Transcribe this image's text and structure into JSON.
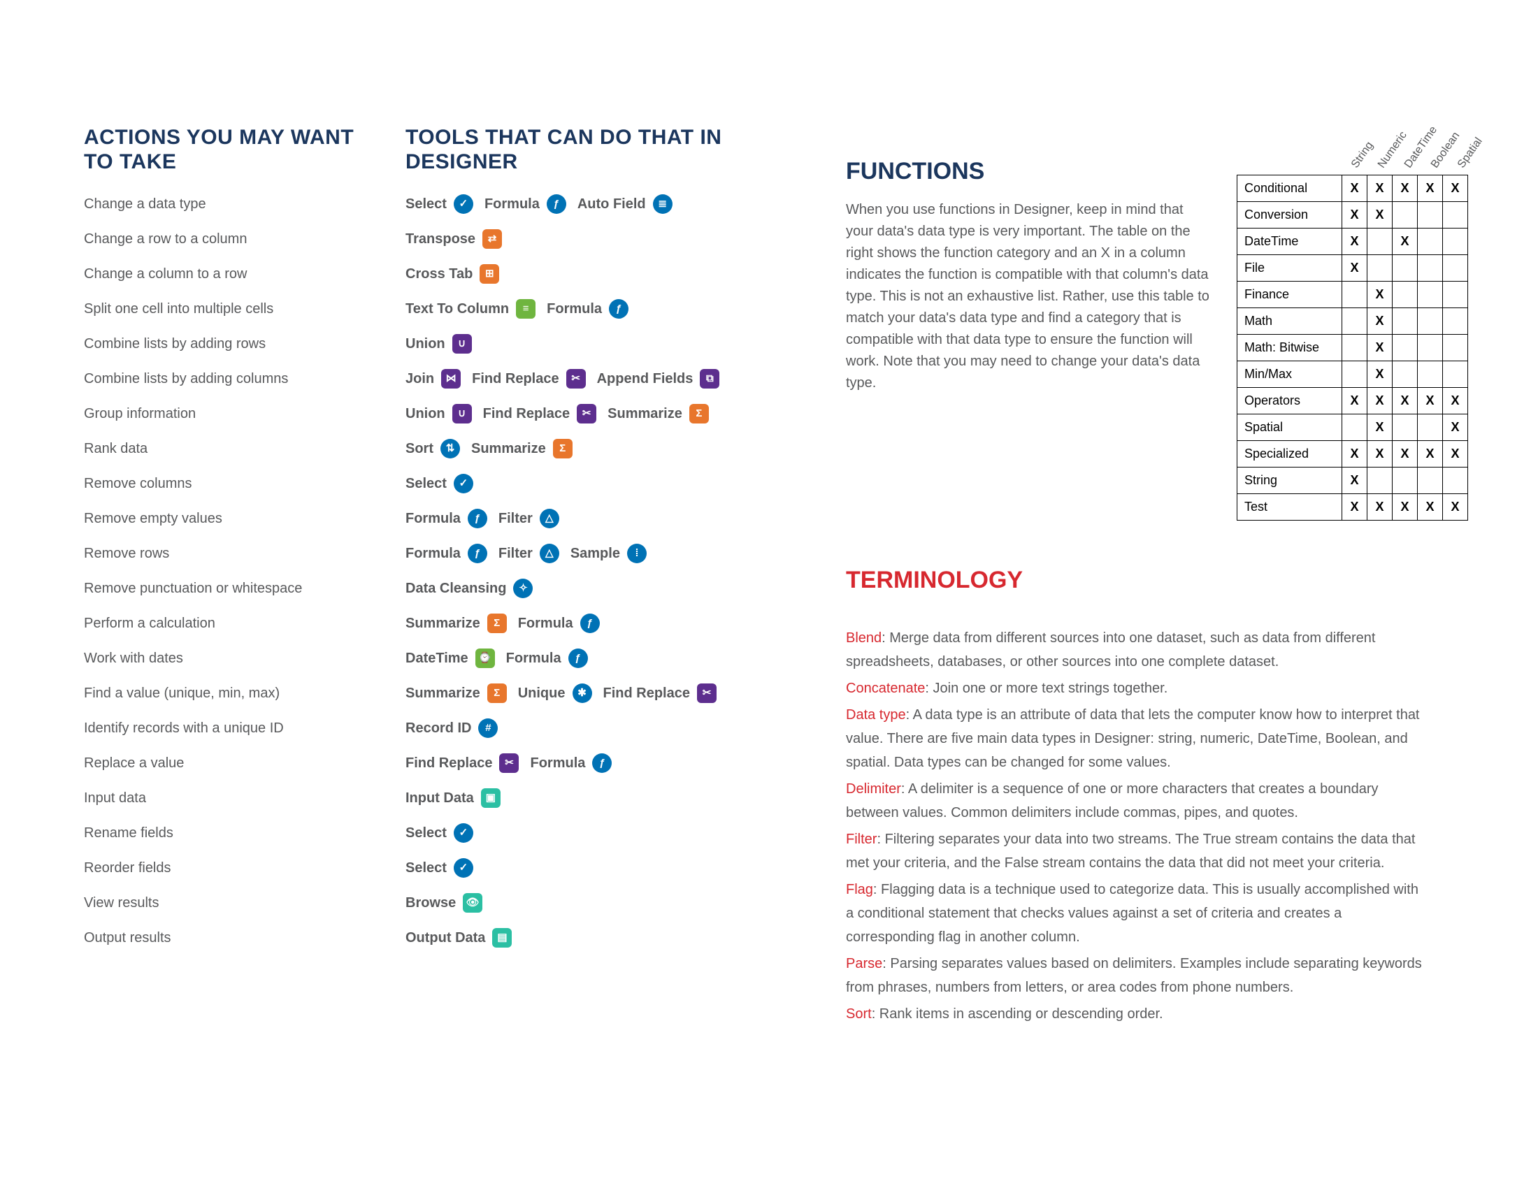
{
  "headings": {
    "actions": "ACTIONS YOU MAY WANT TO TAKE",
    "tools": "TOOLS THAT CAN DO THAT IN DESIGNER",
    "functions": "FUNCTIONS",
    "terminology": "TERMINOLOGY"
  },
  "functions_para": "When you use functions in Designer, keep in mind that your data's data type is very important. The table on the right shows the function category and an X in a column indicates the function is compatible with that column's data type. This is not an exhaustive list. Rather, use this table to match your data's data type and find a category that is compatible with that data type to ensure the function will work. Note that you may need to change your data's data type.",
  "actions": [
    "Change a data type",
    "Change a row to a column",
    "Change a column to a row",
    "Split one cell into multiple cells",
    "Combine lists by adding rows",
    "Combine lists by adding columns",
    "Group information",
    "Rank data",
    "Remove columns",
    "Remove empty values",
    "Remove rows",
    "Remove punctuation or whitespace",
    "Perform a calculation",
    "Work with dates",
    "Find a value (unique, min, max)",
    "Identify records with a unique ID",
    "Replace a value",
    "Input data",
    "Rename fields",
    "Reorder fields",
    "View results",
    "Output results"
  ],
  "tool_rows": [
    [
      {
        "label": "Select",
        "icon": "select"
      },
      {
        "label": "Formula",
        "icon": "formula"
      },
      {
        "label": "Auto Field",
        "icon": "autofield"
      }
    ],
    [
      {
        "label": "Transpose",
        "icon": "transpose"
      }
    ],
    [
      {
        "label": "Cross Tab",
        "icon": "crosstab"
      }
    ],
    [
      {
        "label": "Text To Column",
        "icon": "texttocol"
      },
      {
        "label": "Formula",
        "icon": "formula"
      }
    ],
    [
      {
        "label": "Union",
        "icon": "union"
      }
    ],
    [
      {
        "label": "Join",
        "icon": "join"
      },
      {
        "label": "Find Replace",
        "icon": "findreplace"
      },
      {
        "label": "Append Fields",
        "icon": "appendfields"
      }
    ],
    [
      {
        "label": "Union",
        "icon": "union"
      },
      {
        "label": "Find Replace",
        "icon": "findreplace"
      },
      {
        "label": "Summarize",
        "icon": "summarize"
      }
    ],
    [
      {
        "label": "Sort",
        "icon": "sort"
      },
      {
        "label": "Summarize",
        "icon": "summarize"
      }
    ],
    [
      {
        "label": "Select",
        "icon": "select"
      }
    ],
    [
      {
        "label": "Formula",
        "icon": "formula"
      },
      {
        "label": "Filter",
        "icon": "filter"
      }
    ],
    [
      {
        "label": "Formula",
        "icon": "formula"
      },
      {
        "label": "Filter",
        "icon": "filter"
      },
      {
        "label": "Sample",
        "icon": "sample"
      }
    ],
    [
      {
        "label": "Data Cleansing",
        "icon": "datacleansing"
      }
    ],
    [
      {
        "label": "Summarize",
        "icon": "summarize"
      },
      {
        "label": "Formula",
        "icon": "formula"
      }
    ],
    [
      {
        "label": "DateTime",
        "icon": "datetime"
      },
      {
        "label": "Formula",
        "icon": "formula"
      }
    ],
    [
      {
        "label": "Summarize",
        "icon": "summarize"
      },
      {
        "label": "Unique",
        "icon": "unique"
      },
      {
        "label": "Find Replace",
        "icon": "findreplace"
      }
    ],
    [
      {
        "label": "Record ID",
        "icon": "recordid"
      }
    ],
    [
      {
        "label": "Find Replace",
        "icon": "findreplace"
      },
      {
        "label": "Formula",
        "icon": "formula"
      }
    ],
    [
      {
        "label": "Input Data",
        "icon": "inputdata"
      }
    ],
    [
      {
        "label": "Select",
        "icon": "select"
      }
    ],
    [
      {
        "label": "Select",
        "icon": "select"
      }
    ],
    [
      {
        "label": "Browse",
        "icon": "browse"
      }
    ],
    [
      {
        "label": "Output Data",
        "icon": "outputdata"
      }
    ]
  ],
  "icon_styles": {
    "select": {
      "bg": "#0072b5",
      "shape": "circle",
      "glyph": "✓"
    },
    "formula": {
      "bg": "#0072b5",
      "shape": "circle",
      "glyph": "ƒ"
    },
    "autofield": {
      "bg": "#0072b5",
      "shape": "circle",
      "glyph": "≣"
    },
    "transpose": {
      "bg": "#e8762c",
      "shape": "square",
      "glyph": "⇄"
    },
    "crosstab": {
      "bg": "#e8762c",
      "shape": "square",
      "glyph": "⊞"
    },
    "texttocol": {
      "bg": "#6fb53f",
      "shape": "square",
      "glyph": "≡"
    },
    "union": {
      "bg": "#5d2e8e",
      "shape": "square",
      "glyph": "∪"
    },
    "join": {
      "bg": "#5d2e8e",
      "shape": "square",
      "glyph": "⋈"
    },
    "findreplace": {
      "bg": "#5d2e8e",
      "shape": "square",
      "glyph": "✂"
    },
    "appendfields": {
      "bg": "#5d2e8e",
      "shape": "square",
      "glyph": "⧉"
    },
    "summarize": {
      "bg": "#e8762c",
      "shape": "square",
      "glyph": "Σ"
    },
    "sort": {
      "bg": "#0072b5",
      "shape": "circle",
      "glyph": "⇅"
    },
    "filter": {
      "bg": "#0072b5",
      "shape": "circle",
      "glyph": "△"
    },
    "sample": {
      "bg": "#0072b5",
      "shape": "circle",
      "glyph": "⁞"
    },
    "datacleansing": {
      "bg": "#0072b5",
      "shape": "circle",
      "glyph": "✧"
    },
    "datetime": {
      "bg": "#6fb53f",
      "shape": "square",
      "glyph": "⌚"
    },
    "unique": {
      "bg": "#0072b5",
      "shape": "circle",
      "glyph": "✱"
    },
    "recordid": {
      "bg": "#0072b5",
      "shape": "circle",
      "glyph": "#"
    },
    "inputdata": {
      "bg": "#2bbfa3",
      "shape": "square",
      "glyph": "▣"
    },
    "browse": {
      "bg": "#2bbfa3",
      "shape": "square",
      "glyph": "👁"
    },
    "outputdata": {
      "bg": "#2bbfa3",
      "shape": "square",
      "glyph": "▤"
    }
  },
  "fn_table": {
    "columns": [
      "String",
      "Numeric",
      "DateTime",
      "Boolean",
      "Spatial"
    ],
    "rows": [
      {
        "name": "Conditional",
        "marks": [
          true,
          true,
          true,
          true,
          true
        ]
      },
      {
        "name": "Conversion",
        "marks": [
          true,
          true,
          false,
          false,
          false
        ]
      },
      {
        "name": "DateTime",
        "marks": [
          true,
          false,
          true,
          false,
          false
        ]
      },
      {
        "name": "File",
        "marks": [
          true,
          false,
          false,
          false,
          false
        ]
      },
      {
        "name": "Finance",
        "marks": [
          false,
          true,
          false,
          false,
          false
        ]
      },
      {
        "name": "Math",
        "marks": [
          false,
          true,
          false,
          false,
          false
        ]
      },
      {
        "name": "Math: Bitwise",
        "marks": [
          false,
          true,
          false,
          false,
          false
        ]
      },
      {
        "name": "Min/Max",
        "marks": [
          false,
          true,
          false,
          false,
          false
        ]
      },
      {
        "name": "Operators",
        "marks": [
          true,
          true,
          true,
          true,
          true
        ]
      },
      {
        "name": "Spatial",
        "marks": [
          false,
          true,
          false,
          false,
          true
        ]
      },
      {
        "name": "Specialized",
        "marks": [
          true,
          true,
          true,
          true,
          true
        ]
      },
      {
        "name": "String",
        "marks": [
          true,
          false,
          false,
          false,
          false
        ]
      },
      {
        "name": "Test",
        "marks": [
          true,
          true,
          true,
          true,
          true
        ]
      }
    ]
  },
  "terms": [
    {
      "term": "Blend",
      "def": ": Merge data from different sources into one dataset, such as data from different spreadsheets, databases, or other sources into one complete dataset."
    },
    {
      "term": "Concatenate",
      "def": ": Join one or more text strings together."
    },
    {
      "term": "Data type",
      "def": ": A data type is an attribute of data that lets the computer know how to interpret that value. There are five main data types in Designer: string, numeric, DateTime, Boolean, and spatial. Data types can be changed for some values."
    },
    {
      "term": "Delimiter",
      "def": ": A delimiter is a sequence of one or more characters that creates a boundary between values. Common delimiters include commas, pipes, and quotes."
    },
    {
      "term": "Filter",
      "def": ": Filtering separates your data into two streams. The True stream contains the data that met your criteria, and the False stream contains the data that did not meet your criteria."
    },
    {
      "term": "Flag",
      "def": ": Flagging data is a technique used to categorize data. This is usually accomplished with a conditional statement that checks values against a set of criteria and creates a corresponding flag in another column."
    },
    {
      "term": "Parse",
      "def": ": Parsing separates values based on delimiters. Examples include separating keywords from phrases, numbers from letters, or area codes from phone numbers."
    },
    {
      "term": "Sort",
      "def": ": Rank items in ascending or descending order."
    }
  ]
}
